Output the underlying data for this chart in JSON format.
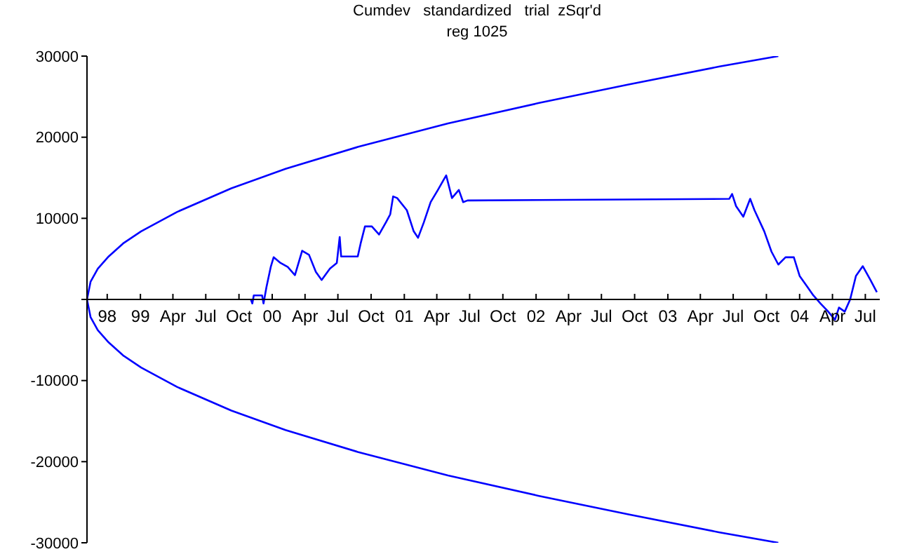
{
  "chart_data": {
    "type": "line",
    "title": "Cumdev   standardized   trial  zSqr'd",
    "subtitle": "reg 1025",
    "xlim": [
      "1998-08-06",
      "2004-08-10"
    ],
    "xticks": [
      {
        "value": "1998-10",
        "label": "98"
      },
      {
        "value": "1999-01",
        "label": "99"
      },
      {
        "value": "1999-04",
        "label": "Apr"
      },
      {
        "value": "1999-07",
        "label": "Jul"
      },
      {
        "value": "1999-10",
        "label": "Oct"
      },
      {
        "value": "2000-01",
        "label": "00"
      },
      {
        "value": "2000-04",
        "label": "Apr"
      },
      {
        "value": "2000-07",
        "label": "Jul"
      },
      {
        "value": "2000-10",
        "label": "Oct"
      },
      {
        "value": "2001-01",
        "label": "01"
      },
      {
        "value": "2001-04",
        "label": "Apr"
      },
      {
        "value": "2001-07",
        "label": "Jul"
      },
      {
        "value": "2001-10",
        "label": "Oct"
      },
      {
        "value": "2002-01",
        "label": "02"
      },
      {
        "value": "2002-04",
        "label": "Apr"
      },
      {
        "value": "2002-07",
        "label": "Jul"
      },
      {
        "value": "2002-10",
        "label": "Oct"
      },
      {
        "value": "2003-01",
        "label": "03"
      },
      {
        "value": "2003-04",
        "label": "Apr"
      },
      {
        "value": "2003-07",
        "label": "Jul"
      },
      {
        "value": "2003-10",
        "label": "Oct"
      },
      {
        "value": "2004-01",
        "label": "04"
      },
      {
        "value": "2004-04",
        "label": "Apr"
      },
      {
        "value": "2004-07",
        "label": "Jul"
      }
    ],
    "ylim": [
      -30000,
      30000
    ],
    "yticks": [
      -30000,
      -20000,
      -10000,
      {
        "value": 0,
        "label": null
      },
      10000,
      20000,
      30000
    ],
    "line_style": "solid",
    "series": [
      {
        "color": "#0000ff",
        "x": [
          "2003-11-03",
          "2003-05-22",
          "2002-09-14",
          "2002-01-07",
          "2001-05-02",
          "2000-08-25",
          "2000-02-07",
          "1999-09-10",
          "1999-04-13",
          "1999-01-03",
          "1998-11-14",
          "1998-10-05",
          "1998-09-05",
          "1998-08-16",
          "1998-08-06",
          "1998-08-16",
          "1998-09-05",
          "1998-10-05",
          "1998-11-14",
          "1999-01-03",
          "1999-04-13",
          "1999-09-10",
          "2000-02-07",
          "2000-08-25",
          "2001-05-02",
          "2002-01-07",
          "2002-09-14",
          "2003-05-22",
          "2003-11-03"
        ],
        "values": [
          30000,
          28700,
          26500,
          24200,
          21700,
          18800,
          16100,
          13700,
          10800,
          8400,
          6900,
          5300,
          3800,
          2200,
          0,
          -2200,
          -3800,
          -5300,
          -6900,
          -8400,
          -10800,
          -13700,
          -16100,
          -18800,
          -21700,
          -24200,
          -26500,
          -28700,
          -30000
        ]
      },
      {
        "color": "#0000ff",
        "x": [
          "1999-11-03",
          "1999-11-07",
          "1999-11-11",
          "1999-12-04",
          "1999-12-08",
          "1999-12-16",
          "1999-12-28",
          "2000-01-05",
          "2000-01-24",
          "2000-02-13",
          "2000-03-04",
          "2000-03-24",
          "2000-04-12",
          "2000-05-01",
          "2000-05-17",
          "2000-06-09",
          "2000-06-28",
          "2000-07-06",
          "2000-07-10",
          "2000-08-25",
          "2000-09-02",
          "2000-09-14",
          "2000-10-03",
          "2000-10-23",
          "2000-11-11",
          "2000-11-23",
          "2000-12-01",
          "2000-12-12",
          "2001-01-08",
          "2001-01-27",
          "2001-02-08",
          "2001-02-24",
          "2001-03-15",
          "2001-04-04",
          "2001-04-27",
          "2001-05-13",
          "2001-06-01",
          "2001-06-13",
          "2001-06-25",
          "2003-06-20",
          "2003-06-28",
          "2003-07-09",
          "2003-07-29",
          "2003-08-17",
          "2003-08-29",
          "2003-09-25",
          "2003-10-15",
          "2003-11-03",
          "2003-11-23",
          "2003-12-16",
          "2004-01-01",
          "2004-01-20",
          "2004-02-08",
          "2004-02-28",
          "2004-03-18",
          "2004-04-08",
          "2004-04-19",
          "2004-05-05",
          "2004-05-20",
          "2004-06-05",
          "2004-06-24",
          "2004-07-14",
          "2004-08-02"
        ],
        "values": [
          0,
          -500,
          500,
          500,
          -500,
          1500,
          4000,
          5200,
          4500,
          4000,
          3000,
          6000,
          5500,
          3400,
          2400,
          3800,
          4500,
          7700,
          5300,
          5300,
          6900,
          9000,
          9000,
          8000,
          9500,
          10500,
          12700,
          12500,
          11000,
          8400,
          7600,
          9500,
          12000,
          13500,
          15300,
          12500,
          13500,
          12000,
          12200,
          12400,
          13000,
          11500,
          10200,
          12400,
          11000,
          8400,
          5900,
          4300,
          5200,
          5200,
          2900,
          1700,
          500,
          -500,
          -1400,
          -2500,
          -1000,
          -1500,
          0,
          2900,
          4100,
          2500,
          900
        ]
      }
    ]
  }
}
